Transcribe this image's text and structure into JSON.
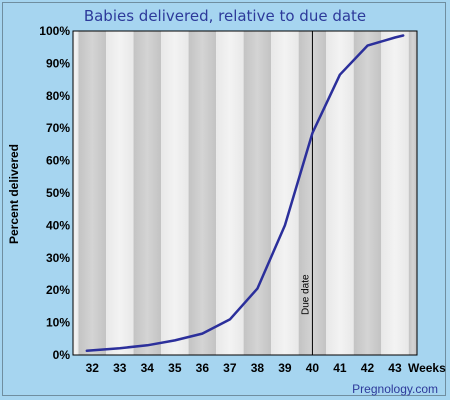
{
  "chart_data": {
    "type": "line",
    "title": "Babies delivered, relative to due date",
    "xlabel": "Weeks",
    "ylabel": "Percent delivered",
    "x": [
      31.8,
      33,
      34,
      35,
      36,
      37,
      38,
      39,
      40,
      41,
      42,
      43,
      43.3
    ],
    "x_ticks": [
      "32",
      "33",
      "34",
      "35",
      "36",
      "37",
      "38",
      "39",
      "40",
      "41",
      "42",
      "43"
    ],
    "y_ticks": [
      "0%",
      "10%",
      "20%",
      "30%",
      "40%",
      "50%",
      "60%",
      "70%",
      "80%",
      "90%",
      "100%"
    ],
    "xlim": [
      31.3,
      43.8
    ],
    "ylim": [
      0,
      100
    ],
    "series": [
      {
        "values": [
          1.3,
          2.1,
          3.0,
          4.5,
          6.6,
          11.0,
          20.5,
          40.0,
          68.5,
          86.5,
          95.5,
          98.0,
          98.6
        ],
        "color": "#2b2f9b"
      }
    ],
    "annotation": {
      "label": "Due date",
      "x": 40
    },
    "band_colors": [
      "#d4d4d4",
      "#f3f3f3"
    ],
    "grid": false
  },
  "credit": "Pregnology.com"
}
